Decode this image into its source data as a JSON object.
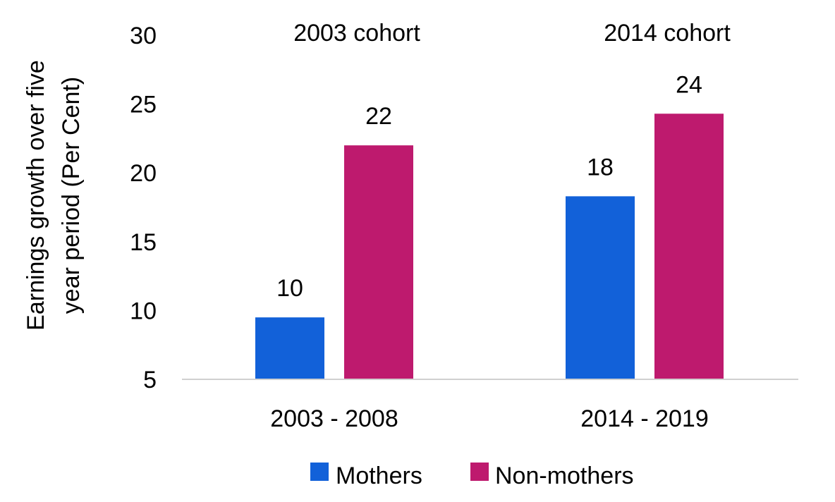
{
  "chart_data": {
    "type": "bar",
    "categories": [
      "2003 - 2008",
      "2014 - 2019"
    ],
    "cohort_labels": [
      "2003 cohort",
      "2014 cohort"
    ],
    "series": [
      {
        "name": "Mothers",
        "values": [
          9.5,
          18.3
        ],
        "labels": [
          "10",
          "18"
        ],
        "color": "#1261D9"
      },
      {
        "name": "Non-mothers",
        "values": [
          22.0,
          24.3
        ],
        "labels": [
          "22",
          "24"
        ],
        "color": "#BE1A6E"
      }
    ],
    "ylabel": "Earnings growth over five year period (Per Cent)",
    "ylabel_lines": [
      "Earnings growth over five",
      "year period (Per Cent)"
    ],
    "ylim": [
      5,
      30
    ],
    "yticks": [
      "5",
      "10",
      "15",
      "20",
      "25",
      "30"
    ],
    "grid": false,
    "legend_position": "bottom"
  }
}
